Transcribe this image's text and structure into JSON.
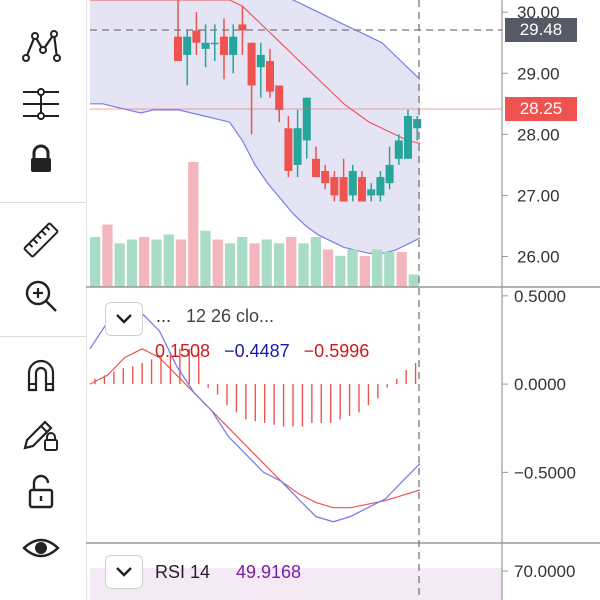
{
  "toolbar": {
    "tools": [
      {
        "name": "trend-line-icon"
      },
      {
        "name": "pattern-icon"
      },
      {
        "name": "fib-tool-icon"
      },
      {
        "name": "lock-icon"
      },
      {
        "name": "ruler-icon"
      },
      {
        "name": "zoom-in-icon"
      },
      {
        "name": "magnet-icon"
      },
      {
        "name": "pencil-lock-icon"
      },
      {
        "name": "unlock-icon"
      },
      {
        "name": "eye-icon"
      }
    ]
  },
  "colors": {
    "up": "#26a69a",
    "down": "#ef5350",
    "band_fill": "#d9d8f0",
    "band_line": "#7b7ee8",
    "basis_line": "#ef5350",
    "vol_up": "#a8dcc7",
    "vol_down": "#f4b6bd",
    "macd_line": "#7b7ee8",
    "signal_line": "#ef5350",
    "hist": "#ef5350",
    "crosshair_label": "#555a66",
    "last_price_label": "#ef5350",
    "rsi_value": "#7b1fa2",
    "rsi_band": "#f3eaf6"
  },
  "price_panel": {
    "crosshair_price": "29.48",
    "last_price": "28.25",
    "y_ticks": [
      "30.00",
      "29.00",
      "28.00",
      "27.00",
      "26.00"
    ]
  },
  "macd_panel": {
    "params": "12 26 clo...",
    "dots": "...",
    "values": [
      "0.1508",
      "−0.4487",
      "−0.5996"
    ],
    "value_colors": [
      "#cc1b1b",
      "#1a1aa8",
      "#cc1b1b"
    ],
    "y_ticks": [
      "0.5000",
      "0.0000",
      "−0.5000"
    ]
  },
  "rsi_panel": {
    "title": "RSI 14",
    "value": "49.9168",
    "y_ticks": [
      "70.0000"
    ]
  },
  "chart_data": [
    {
      "type": "candlestick",
      "title": "",
      "ylim": [
        25.5,
        30.2
      ],
      "y_ticks": [
        26,
        27,
        28,
        29,
        30
      ],
      "candles": [
        {
          "o": 29.6,
          "h": 30.2,
          "l": 29.2,
          "c": 29.2
        },
        {
          "o": 29.3,
          "h": 29.7,
          "l": 28.8,
          "c": 29.6
        },
        {
          "o": 29.7,
          "h": 30.0,
          "l": 29.3,
          "c": 29.5
        },
        {
          "o": 29.4,
          "h": 29.8,
          "l": 29.1,
          "c": 29.5
        },
        {
          "o": 29.5,
          "h": 29.8,
          "l": 29.2,
          "c": 29.5
        },
        {
          "o": 29.6,
          "h": 29.9,
          "l": 28.9,
          "c": 29.3
        },
        {
          "o": 29.3,
          "h": 29.8,
          "l": 29.0,
          "c": 29.6
        },
        {
          "o": 29.8,
          "h": 30.1,
          "l": 29.3,
          "c": 29.7
        },
        {
          "o": 29.5,
          "h": 29.5,
          "l": 28.0,
          "c": 28.8
        },
        {
          "o": 29.1,
          "h": 29.5,
          "l": 28.6,
          "c": 29.3
        },
        {
          "o": 29.2,
          "h": 29.4,
          "l": 28.6,
          "c": 28.7
        },
        {
          "o": 28.8,
          "h": 28.8,
          "l": 28.2,
          "c": 28.4
        },
        {
          "o": 28.1,
          "h": 28.3,
          "l": 27.3,
          "c": 27.4
        },
        {
          "o": 27.5,
          "h": 28.4,
          "l": 27.3,
          "c": 28.1
        },
        {
          "o": 27.9,
          "h": 28.6,
          "l": 27.6,
          "c": 28.6
        },
        {
          "o": 27.6,
          "h": 27.8,
          "l": 27.3,
          "c": 27.3
        },
        {
          "o": 27.4,
          "h": 27.5,
          "l": 27.1,
          "c": 27.2
        },
        {
          "o": 27.3,
          "h": 27.4,
          "l": 26.9,
          "c": 27.0
        },
        {
          "o": 27.3,
          "h": 27.6,
          "l": 26.9,
          "c": 26.9
        },
        {
          "o": 27.0,
          "h": 27.5,
          "l": 26.9,
          "c": 27.4
        },
        {
          "o": 27.3,
          "h": 27.4,
          "l": 26.9,
          "c": 26.9
        },
        {
          "o": 27.0,
          "h": 27.2,
          "l": 26.9,
          "c": 27.1
        },
        {
          "o": 27.0,
          "h": 27.4,
          "l": 26.9,
          "c": 27.3
        },
        {
          "o": 27.2,
          "h": 27.8,
          "l": 27.1,
          "c": 27.5
        },
        {
          "o": 27.6,
          "h": 28.0,
          "l": 27.5,
          "c": 27.9
        },
        {
          "o": 27.6,
          "h": 28.4,
          "l": 27.6,
          "c": 28.3
        },
        {
          "o": 28.1,
          "h": 28.3,
          "l": 27.9,
          "c": 28.25
        }
      ],
      "bollinger": {
        "upper": [
          30.4,
          30.4,
          30.4,
          30.4,
          30.4,
          30.4,
          30.4,
          30.4,
          30.4,
          30.4,
          30.4,
          30.4,
          30.4,
          30.4,
          30.4,
          30.3,
          30.2,
          30.1,
          30.0,
          29.9,
          29.8,
          29.7,
          29.6,
          29.5,
          29.3,
          29.1,
          28.9
        ],
        "basis": [
          30.2,
          30.2,
          30.2,
          30.2,
          30.2,
          30.2,
          30.2,
          30.2,
          30.2,
          30.2,
          30.2,
          30.2,
          30.1,
          29.9,
          29.7,
          29.5,
          29.3,
          29.1,
          28.9,
          28.7,
          28.5,
          28.35,
          28.2,
          28.1,
          28.0,
          27.9,
          27.85
        ],
        "lower": [
          28.5,
          28.5,
          28.45,
          28.4,
          28.35,
          28.4,
          28.4,
          28.4,
          28.35,
          28.3,
          28.25,
          28.2,
          27.9,
          27.5,
          27.2,
          26.95,
          26.7,
          26.5,
          26.35,
          26.25,
          26.15,
          26.1,
          26.05,
          26.05,
          26.1,
          26.2,
          26.3
        ]
      },
      "volume_ylim": [
        0,
        100
      ],
      "volume": [
        40,
        50,
        35,
        38,
        40,
        38,
        42,
        38,
        100,
        45,
        38,
        35,
        40,
        35,
        38,
        35,
        40,
        35,
        40,
        30,
        25,
        30,
        25,
        30,
        28,
        28,
        10
      ]
    },
    {
      "type": "macd",
      "params": "12 26 close",
      "ylim": [
        -0.9,
        0.55
      ],
      "y_ticks": [
        0.5,
        0.0,
        -0.5
      ],
      "macd": [
        0.2,
        0.35,
        0.38,
        0.4,
        0.3,
        0.1,
        -0.05,
        -0.15,
        -0.3,
        -0.4,
        -0.5,
        -0.55,
        -0.65,
        -0.75,
        -0.78,
        -0.75,
        -0.7,
        -0.65,
        -0.55,
        -0.45
      ],
      "signal": [
        0.0,
        0.05,
        0.15,
        0.2,
        0.15,
        0.05,
        -0.05,
        -0.15,
        -0.25,
        -0.35,
        -0.45,
        -0.55,
        -0.62,
        -0.67,
        -0.7,
        -0.7,
        -0.68,
        -0.66,
        -0.63,
        -0.6
      ],
      "histogram": [
        0.03,
        0.05,
        0.07,
        0.09,
        0.1,
        0.12,
        0.14,
        0.16,
        0.18,
        0.2,
        0.2,
        0.18,
        -0.02,
        -0.06,
        -0.12,
        -0.16,
        -0.2,
        -0.21,
        -0.22,
        -0.23,
        -0.24,
        -0.24,
        -0.24,
        -0.22,
        -0.22,
        -0.22,
        -0.2,
        -0.18,
        -0.16,
        -0.12,
        -0.08,
        -0.02,
        0.03,
        0.08,
        0.12
      ]
    },
    {
      "type": "line",
      "name": "RSI 14",
      "y_ticks": [
        70
      ]
    }
  ]
}
